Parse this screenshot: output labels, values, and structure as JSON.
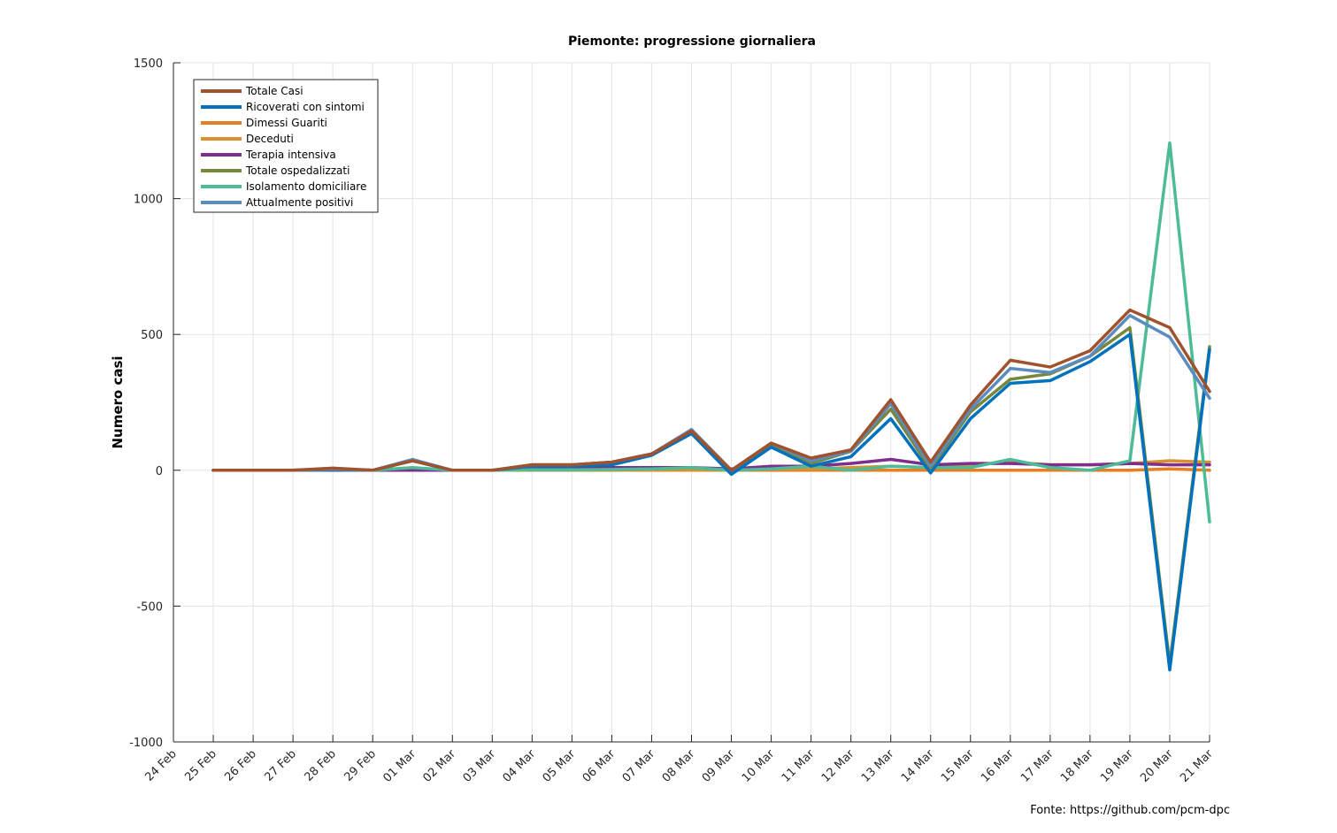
{
  "chart_data": {
    "type": "line",
    "title": "Piemonte: progressione giornaliera",
    "xlabel": "",
    "ylabel": "Numero casi",
    "ylim": [
      -1000,
      1500
    ],
    "yticks": [
      -1000,
      -500,
      0,
      500,
      1000,
      1500
    ],
    "grid": true,
    "legend_position": "top-left",
    "source_note": "Fonte: https://github.com/pcm-dpc",
    "categories": [
      "24 Feb",
      "25 Feb",
      "26 Feb",
      "27 Feb",
      "28 Feb",
      "29 Feb",
      "01 Mar",
      "02 Mar",
      "03 Mar",
      "04 Mar",
      "05 Mar",
      "06 Mar",
      "07 Mar",
      "08 Mar",
      "09 Mar",
      "10 Mar",
      "11 Mar",
      "12 Mar",
      "13 Mar",
      "14 Mar",
      "15 Mar",
      "16 Mar",
      "17 Mar",
      "18 Mar",
      "19 Mar",
      "20 Mar",
      "21 Mar"
    ],
    "series": [
      {
        "name": "Totale Casi",
        "color": "#a0522d",
        "values": [
          null,
          0,
          0,
          0,
          8,
          0,
          35,
          0,
          0,
          20,
          20,
          30,
          60,
          145,
          0,
          100,
          45,
          75,
          260,
          30,
          240,
          405,
          380,
          440,
          590,
          525,
          290
        ]
      },
      {
        "name": "Ricoverati con sintomi",
        "color": "#0072bd",
        "values": [
          null,
          0,
          0,
          0,
          3,
          0,
          35,
          0,
          0,
          15,
          15,
          20,
          55,
          135,
          -15,
          85,
          15,
          50,
          190,
          -10,
          190,
          320,
          330,
          400,
          500,
          -735,
          445
        ]
      },
      {
        "name": "Dimessi Guariti",
        "color": "#e67e22",
        "values": [
          null,
          0,
          0,
          0,
          0,
          0,
          0,
          0,
          0,
          0,
          0,
          0,
          0,
          0,
          0,
          0,
          0,
          0,
          0,
          0,
          0,
          0,
          0,
          0,
          0,
          5,
          0
        ]
      },
      {
        "name": "Deceduti",
        "color": "#d9902f",
        "values": [
          null,
          0,
          0,
          0,
          0,
          0,
          0,
          0,
          0,
          0,
          0,
          0,
          0,
          0,
          0,
          5,
          5,
          10,
          15,
          10,
          20,
          30,
          20,
          20,
          25,
          35,
          30
        ]
      },
      {
        "name": "Terapia intensiva",
        "color": "#7e2f8e",
        "values": [
          null,
          0,
          0,
          0,
          0,
          0,
          0,
          0,
          0,
          5,
          5,
          10,
          10,
          10,
          5,
          15,
          15,
          25,
          40,
          20,
          25,
          25,
          20,
          20,
          25,
          20,
          20
        ]
      },
      {
        "name": "Totale ospedalizzati",
        "color": "#77883a",
        "values": [
          null,
          0,
          0,
          0,
          3,
          0,
          35,
          0,
          0,
          20,
          20,
          30,
          60,
          140,
          -10,
          95,
          25,
          70,
          225,
          5,
          215,
          335,
          355,
          420,
          525,
          -715,
          455
        ]
      },
      {
        "name": "Isolamento domiciliare",
        "color": "#4dbb97",
        "values": [
          null,
          0,
          0,
          0,
          2,
          0,
          10,
          0,
          0,
          2,
          2,
          3,
          5,
          10,
          0,
          5,
          15,
          0,
          15,
          10,
          10,
          40,
          10,
          0,
          35,
          1205,
          -190
        ]
      },
      {
        "name": "Attualmente positivi",
        "color": "#5b8cc0",
        "values": [
          null,
          0,
          0,
          0,
          5,
          0,
          40,
          0,
          0,
          20,
          20,
          30,
          60,
          150,
          0,
          100,
          35,
          70,
          245,
          15,
          225,
          375,
          360,
          420,
          570,
          490,
          265
        ]
      }
    ]
  }
}
